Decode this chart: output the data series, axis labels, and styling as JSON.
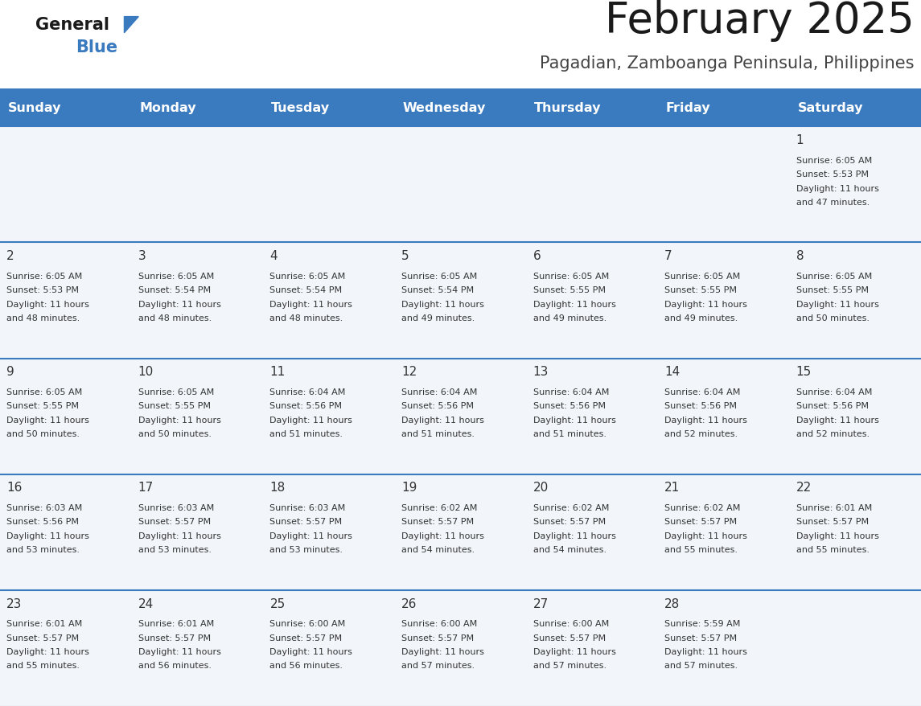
{
  "title": "February 2025",
  "subtitle": "Pagadian, Zamboanga Peninsula, Philippines",
  "header_bg": "#3a7abf",
  "header_text_color": "#ffffff",
  "cell_bg": "#f2f6fa",
  "separator_color": "#3a7abf",
  "text_color": "#333333",
  "day_headers": [
    "Sunday",
    "Monday",
    "Tuesday",
    "Wednesday",
    "Thursday",
    "Friday",
    "Saturday"
  ],
  "days": [
    {
      "day": 1,
      "col": 6,
      "row": 0,
      "sunrise": "6:05 AM",
      "sunset": "5:53 PM",
      "daylight_hrs": 11,
      "daylight_min": 47
    },
    {
      "day": 2,
      "col": 0,
      "row": 1,
      "sunrise": "6:05 AM",
      "sunset": "5:53 PM",
      "daylight_hrs": 11,
      "daylight_min": 48
    },
    {
      "day": 3,
      "col": 1,
      "row": 1,
      "sunrise": "6:05 AM",
      "sunset": "5:54 PM",
      "daylight_hrs": 11,
      "daylight_min": 48
    },
    {
      "day": 4,
      "col": 2,
      "row": 1,
      "sunrise": "6:05 AM",
      "sunset": "5:54 PM",
      "daylight_hrs": 11,
      "daylight_min": 48
    },
    {
      "day": 5,
      "col": 3,
      "row": 1,
      "sunrise": "6:05 AM",
      "sunset": "5:54 PM",
      "daylight_hrs": 11,
      "daylight_min": 49
    },
    {
      "day": 6,
      "col": 4,
      "row": 1,
      "sunrise": "6:05 AM",
      "sunset": "5:55 PM",
      "daylight_hrs": 11,
      "daylight_min": 49
    },
    {
      "day": 7,
      "col": 5,
      "row": 1,
      "sunrise": "6:05 AM",
      "sunset": "5:55 PM",
      "daylight_hrs": 11,
      "daylight_min": 49
    },
    {
      "day": 8,
      "col": 6,
      "row": 1,
      "sunrise": "6:05 AM",
      "sunset": "5:55 PM",
      "daylight_hrs": 11,
      "daylight_min": 50
    },
    {
      "day": 9,
      "col": 0,
      "row": 2,
      "sunrise": "6:05 AM",
      "sunset": "5:55 PM",
      "daylight_hrs": 11,
      "daylight_min": 50
    },
    {
      "day": 10,
      "col": 1,
      "row": 2,
      "sunrise": "6:05 AM",
      "sunset": "5:55 PM",
      "daylight_hrs": 11,
      "daylight_min": 50
    },
    {
      "day": 11,
      "col": 2,
      "row": 2,
      "sunrise": "6:04 AM",
      "sunset": "5:56 PM",
      "daylight_hrs": 11,
      "daylight_min": 51
    },
    {
      "day": 12,
      "col": 3,
      "row": 2,
      "sunrise": "6:04 AM",
      "sunset": "5:56 PM",
      "daylight_hrs": 11,
      "daylight_min": 51
    },
    {
      "day": 13,
      "col": 4,
      "row": 2,
      "sunrise": "6:04 AM",
      "sunset": "5:56 PM",
      "daylight_hrs": 11,
      "daylight_min": 51
    },
    {
      "day": 14,
      "col": 5,
      "row": 2,
      "sunrise": "6:04 AM",
      "sunset": "5:56 PM",
      "daylight_hrs": 11,
      "daylight_min": 52
    },
    {
      "day": 15,
      "col": 6,
      "row": 2,
      "sunrise": "6:04 AM",
      "sunset": "5:56 PM",
      "daylight_hrs": 11,
      "daylight_min": 52
    },
    {
      "day": 16,
      "col": 0,
      "row": 3,
      "sunrise": "6:03 AM",
      "sunset": "5:56 PM",
      "daylight_hrs": 11,
      "daylight_min": 53
    },
    {
      "day": 17,
      "col": 1,
      "row": 3,
      "sunrise": "6:03 AM",
      "sunset": "5:57 PM",
      "daylight_hrs": 11,
      "daylight_min": 53
    },
    {
      "day": 18,
      "col": 2,
      "row": 3,
      "sunrise": "6:03 AM",
      "sunset": "5:57 PM",
      "daylight_hrs": 11,
      "daylight_min": 53
    },
    {
      "day": 19,
      "col": 3,
      "row": 3,
      "sunrise": "6:02 AM",
      "sunset": "5:57 PM",
      "daylight_hrs": 11,
      "daylight_min": 54
    },
    {
      "day": 20,
      "col": 4,
      "row": 3,
      "sunrise": "6:02 AM",
      "sunset": "5:57 PM",
      "daylight_hrs": 11,
      "daylight_min": 54
    },
    {
      "day": 21,
      "col": 5,
      "row": 3,
      "sunrise": "6:02 AM",
      "sunset": "5:57 PM",
      "daylight_hrs": 11,
      "daylight_min": 55
    },
    {
      "day": 22,
      "col": 6,
      "row": 3,
      "sunrise": "6:01 AM",
      "sunset": "5:57 PM",
      "daylight_hrs": 11,
      "daylight_min": 55
    },
    {
      "day": 23,
      "col": 0,
      "row": 4,
      "sunrise": "6:01 AM",
      "sunset": "5:57 PM",
      "daylight_hrs": 11,
      "daylight_min": 55
    },
    {
      "day": 24,
      "col": 1,
      "row": 4,
      "sunrise": "6:01 AM",
      "sunset": "5:57 PM",
      "daylight_hrs": 11,
      "daylight_min": 56
    },
    {
      "day": 25,
      "col": 2,
      "row": 4,
      "sunrise": "6:00 AM",
      "sunset": "5:57 PM",
      "daylight_hrs": 11,
      "daylight_min": 56
    },
    {
      "day": 26,
      "col": 3,
      "row": 4,
      "sunrise": "6:00 AM",
      "sunset": "5:57 PM",
      "daylight_hrs": 11,
      "daylight_min": 57
    },
    {
      "day": 27,
      "col": 4,
      "row": 4,
      "sunrise": "6:00 AM",
      "sunset": "5:57 PM",
      "daylight_hrs": 11,
      "daylight_min": 57
    },
    {
      "day": 28,
      "col": 5,
      "row": 4,
      "sunrise": "5:59 AM",
      "sunset": "5:57 PM",
      "daylight_hrs": 11,
      "daylight_min": 57
    }
  ]
}
